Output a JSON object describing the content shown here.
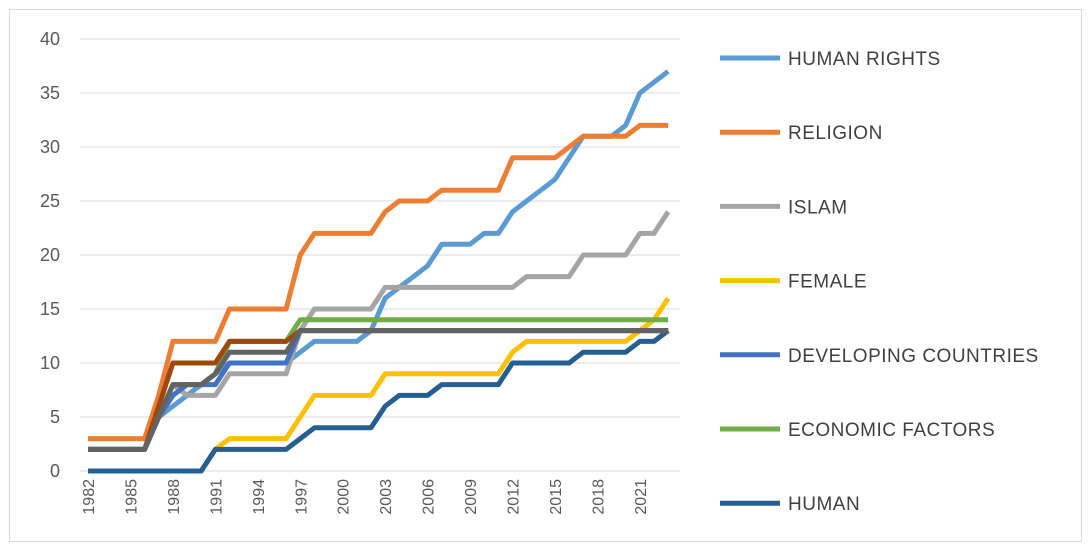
{
  "chart_data": {
    "type": "line",
    "categories": [
      "1982",
      null,
      null,
      "1985",
      null,
      null,
      "1988",
      null,
      null,
      "1991",
      null,
      null,
      "1994",
      null,
      null,
      "1997",
      null,
      null,
      "2000",
      null,
      null,
      "2003",
      null,
      null,
      "2006",
      null,
      null,
      "2009",
      null,
      null,
      "2012",
      null,
      null,
      "2015",
      null,
      null,
      "2018",
      null,
      null,
      "2021",
      null,
      null
    ],
    "ylim": [
      0,
      40
    ],
    "yticks": [
      0,
      5,
      10,
      15,
      20,
      25,
      30,
      35,
      40
    ],
    "grid": true,
    "legend": "right",
    "series": [
      {
        "name": "HUMAN RIGHTS",
        "color": "#5b9bd5",
        "values": [
          2,
          2,
          2,
          2,
          2,
          5,
          6,
          7,
          8,
          9,
          10,
          10,
          10,
          10,
          10,
          11,
          12,
          12,
          12,
          12,
          13,
          16,
          17,
          18,
          19,
          21,
          21,
          21,
          22,
          22,
          24,
          25,
          26,
          27,
          29,
          31,
          31,
          31,
          32,
          35,
          36,
          37
        ]
      },
      {
        "name": "RELIGION",
        "color": "#ed7d31",
        "values": [
          3,
          3,
          3,
          3,
          3,
          7,
          12,
          12,
          12,
          12,
          15,
          15,
          15,
          15,
          15,
          20,
          22,
          22,
          22,
          22,
          22,
          24,
          25,
          25,
          25,
          26,
          26,
          26,
          26,
          26,
          29,
          29,
          29,
          29,
          30,
          31,
          31,
          31,
          31,
          32,
          32,
          32
        ]
      },
      {
        "name": "ISLAM",
        "color": "#a5a5a5",
        "values": [
          2,
          2,
          2,
          2,
          2,
          5,
          8,
          7,
          7,
          7,
          9,
          9,
          9,
          9,
          9,
          13,
          15,
          15,
          15,
          15,
          15,
          17,
          17,
          17,
          17,
          17,
          17,
          17,
          17,
          17,
          17,
          18,
          18,
          18,
          18,
          20,
          20,
          20,
          20,
          22,
          22,
          24
        ]
      },
      {
        "name": "FEMALE",
        "color": "#ffc000",
        "values": [
          0,
          0,
          0,
          0,
          0,
          0,
          0,
          0,
          0,
          2,
          3,
          3,
          3,
          3,
          3,
          5,
          7,
          7,
          7,
          7,
          7,
          9,
          9,
          9,
          9,
          9,
          9,
          9,
          9,
          9,
          11,
          12,
          12,
          12,
          12,
          12,
          12,
          12,
          12,
          13,
          14,
          16
        ]
      },
      {
        "name": "DEVELOPING COUNTRIES",
        "color": "#4472c4",
        "values": [
          2,
          2,
          2,
          2,
          2,
          5,
          7,
          8,
          8,
          8,
          10,
          10,
          10,
          10,
          10,
          13,
          13,
          13,
          13,
          13,
          13,
          13,
          13,
          13,
          13,
          13,
          13,
          13,
          13,
          13,
          13,
          13,
          13,
          13,
          13,
          13,
          13,
          13,
          13,
          13,
          13,
          13
        ]
      },
      {
        "name": "ECONOMIC FACTORS",
        "color": "#70ad47",
        "values": [
          2,
          2,
          2,
          2,
          2,
          5,
          8,
          8,
          8,
          9,
          12,
          12,
          12,
          12,
          12,
          14,
          14,
          14,
          14,
          14,
          14,
          14,
          14,
          14,
          14,
          14,
          14,
          14,
          14,
          14,
          14,
          14,
          14,
          14,
          14,
          14,
          14,
          14,
          14,
          14,
          14,
          14
        ]
      },
      {
        "name": "HUMAN",
        "color": "#255e91",
        "values": [
          0,
          0,
          0,
          0,
          0,
          0,
          0,
          0,
          0,
          2,
          2,
          2,
          2,
          2,
          2,
          3,
          4,
          4,
          4,
          4,
          4,
          6,
          7,
          7,
          7,
          8,
          8,
          8,
          8,
          8,
          10,
          10,
          10,
          10,
          10,
          11,
          11,
          11,
          11,
          12,
          12,
          13
        ]
      },
      {
        "color": "#9e480e",
        "values": [
          2,
          2,
          2,
          2,
          2,
          6,
          10,
          10,
          10,
          10,
          12,
          12,
          12,
          12,
          12,
          13,
          13,
          13,
          13,
          13,
          13,
          13,
          13,
          13,
          13,
          13,
          13,
          13,
          13,
          13,
          13,
          13,
          13,
          13,
          13,
          13,
          13,
          13,
          13,
          13,
          13,
          13
        ]
      },
      {
        "color": "#636363",
        "values": [
          2,
          2,
          2,
          2,
          2,
          5,
          8,
          8,
          8,
          9,
          11,
          11,
          11,
          11,
          11,
          13,
          13,
          13,
          13,
          13,
          13,
          13,
          13,
          13,
          13,
          13,
          13,
          13,
          13,
          13,
          13,
          13,
          13,
          13,
          13,
          13,
          13,
          13,
          13,
          13,
          13,
          13
        ]
      }
    ]
  }
}
